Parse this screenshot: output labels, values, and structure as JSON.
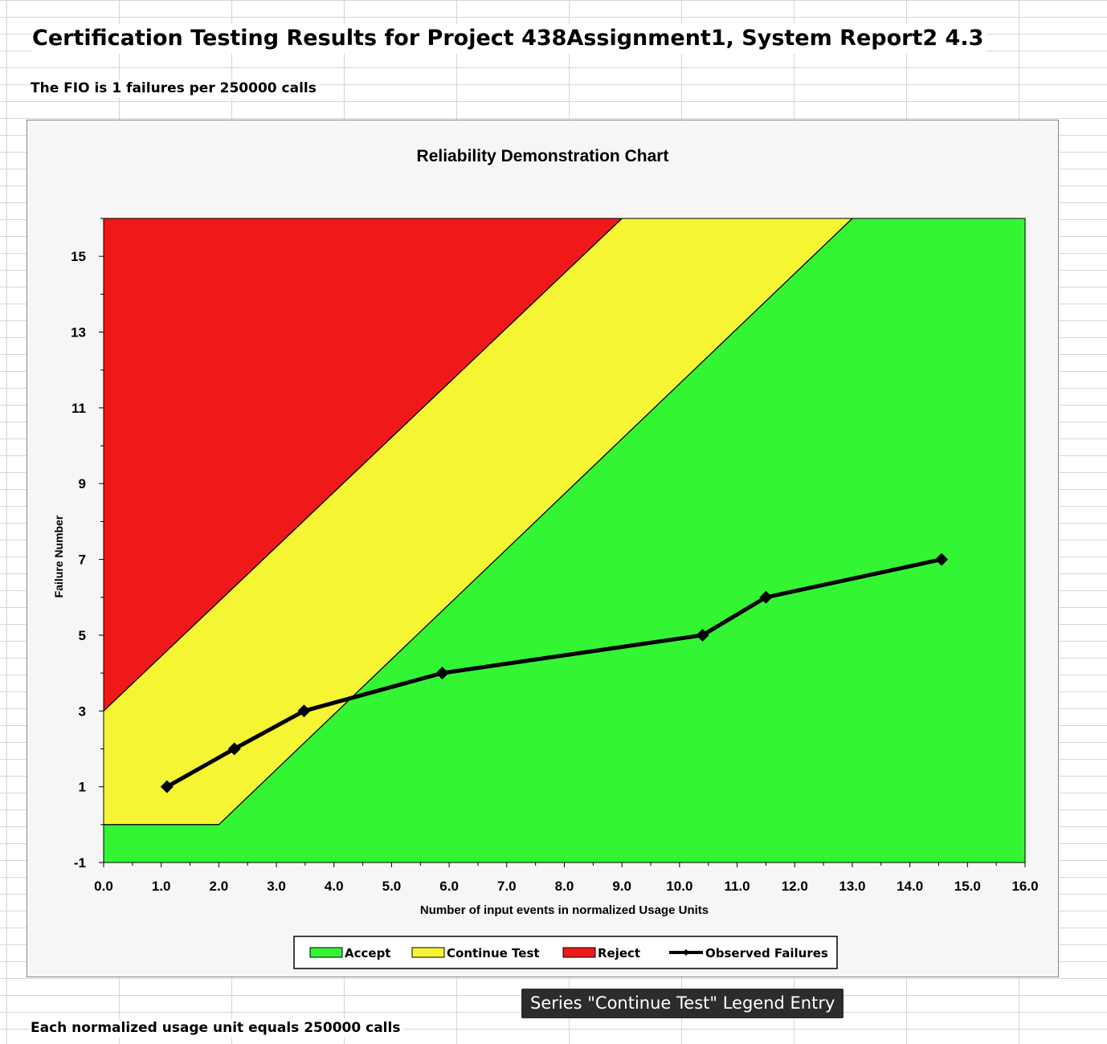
{
  "sheet": {
    "title": "Certification Testing Results for Project 438Assignment1, System Report2 4.3",
    "fio_note": "The FIO is 1 failures per 250000 calls",
    "footer_note": "Each normalized usage unit equals 250000 calls"
  },
  "tooltip": "Series \"Continue Test\" Legend Entry",
  "chart_data": {
    "type": "area",
    "title": "Reliability Demonstration Chart",
    "xlabel": "Number of input events in normalized Usage Units",
    "ylabel": "Failure Number",
    "xlim": [
      0,
      16
    ],
    "ylim": [
      -1,
      16
    ],
    "x_ticks": [
      "0.0",
      "1.0",
      "2.0",
      "3.0",
      "4.0",
      "5.0",
      "6.0",
      "7.0",
      "8.0",
      "9.0",
      "10.0",
      "11.0",
      "12.0",
      "13.0",
      "14.0",
      "15.0",
      "16.0"
    ],
    "y_ticks": [
      "-1",
      "1",
      "3",
      "5",
      "7",
      "9",
      "11",
      "13",
      "15"
    ],
    "regions": [
      {
        "name": "Accept",
        "color": "#33f533"
      },
      {
        "name": "Continue Test",
        "color": "#f5f533",
        "upper_boundary": [
          [
            0,
            3
          ],
          [
            9.0,
            16
          ]
        ],
        "lower_boundary": [
          [
            0,
            0
          ],
          [
            2.0,
            0
          ],
          [
            13.0,
            16
          ]
        ]
      },
      {
        "name": "Reject",
        "color": "#ef1919"
      }
    ],
    "series": [
      {
        "name": "Observed Failures",
        "color": "#000000",
        "x": [
          1.1,
          2.27,
          3.48,
          5.88,
          10.4,
          11.5,
          14.55
        ],
        "y": [
          1,
          2,
          3,
          4,
          5,
          6,
          7
        ]
      }
    ],
    "legend": {
      "position": "bottom",
      "entries": [
        {
          "label": "Accept",
          "color": "#33f533",
          "kind": "area"
        },
        {
          "label": "Continue Test",
          "color": "#f5f533",
          "kind": "area"
        },
        {
          "label": "Reject",
          "color": "#ef1919",
          "kind": "area"
        },
        {
          "label": "Observed Failures",
          "color": "#000000",
          "kind": "line"
        }
      ]
    }
  }
}
